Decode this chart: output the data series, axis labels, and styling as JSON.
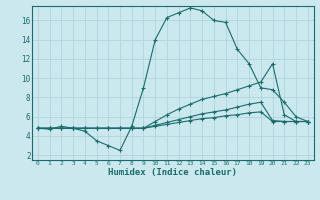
{
  "title": "",
  "xlabel": "Humidex (Indice chaleur)",
  "ylabel": "",
  "background_color": "#cce8ef",
  "grid_color": "#b0d4dc",
  "line_color": "#1a6b6b",
  "x_ticks": [
    0,
    1,
    2,
    3,
    4,
    5,
    6,
    7,
    8,
    9,
    10,
    11,
    12,
    13,
    14,
    15,
    16,
    17,
    18,
    19,
    20,
    21,
    22,
    23
  ],
  "y_ticks": [
    2,
    4,
    6,
    8,
    10,
    12,
    14,
    16
  ],
  "xlim": [
    -0.5,
    23.5
  ],
  "ylim": [
    1.5,
    17.5
  ],
  "lines": [
    {
      "x": [
        0,
        1,
        2,
        3,
        4,
        5,
        6,
        7,
        8,
        9,
        10,
        11,
        12,
        13,
        14,
        15,
        16,
        17,
        18,
        19,
        20,
        21,
        22,
        23
      ],
      "y": [
        4.8,
        4.7,
        5.0,
        4.8,
        4.5,
        3.5,
        3.0,
        2.5,
        5.0,
        9.0,
        14.0,
        16.3,
        16.8,
        17.3,
        17.0,
        16.0,
        15.8,
        13.0,
        11.5,
        9.0,
        8.8,
        7.5,
        6.0,
        5.5
      ]
    },
    {
      "x": [
        0,
        1,
        2,
        3,
        4,
        5,
        6,
        7,
        8,
        9,
        10,
        11,
        12,
        13,
        14,
        15,
        16,
        17,
        18,
        19,
        20,
        21,
        22,
        23
      ],
      "y": [
        4.8,
        4.8,
        4.8,
        4.8,
        4.8,
        4.8,
        4.8,
        4.8,
        4.8,
        4.8,
        5.5,
        6.2,
        6.8,
        7.3,
        7.8,
        8.1,
        8.4,
        8.8,
        9.2,
        9.6,
        11.5,
        6.2,
        5.5,
        5.5
      ]
    },
    {
      "x": [
        0,
        1,
        2,
        3,
        4,
        5,
        6,
        7,
        8,
        9,
        10,
        11,
        12,
        13,
        14,
        15,
        16,
        17,
        18,
        19,
        20,
        21,
        22,
        23
      ],
      "y": [
        4.8,
        4.8,
        4.8,
        4.8,
        4.8,
        4.8,
        4.8,
        4.8,
        4.8,
        4.8,
        5.1,
        5.4,
        5.7,
        6.0,
        6.3,
        6.5,
        6.7,
        7.0,
        7.3,
        7.5,
        5.6,
        5.5,
        5.5,
        5.5
      ]
    },
    {
      "x": [
        0,
        1,
        2,
        3,
        4,
        5,
        6,
        7,
        8,
        9,
        10,
        11,
        12,
        13,
        14,
        15,
        16,
        17,
        18,
        19,
        20,
        21,
        22,
        23
      ],
      "y": [
        4.8,
        4.8,
        4.8,
        4.8,
        4.8,
        4.8,
        4.8,
        4.8,
        4.8,
        4.8,
        5.0,
        5.2,
        5.4,
        5.6,
        5.8,
        5.9,
        6.1,
        6.2,
        6.4,
        6.5,
        5.5,
        5.5,
        5.5,
        5.5
      ]
    }
  ]
}
